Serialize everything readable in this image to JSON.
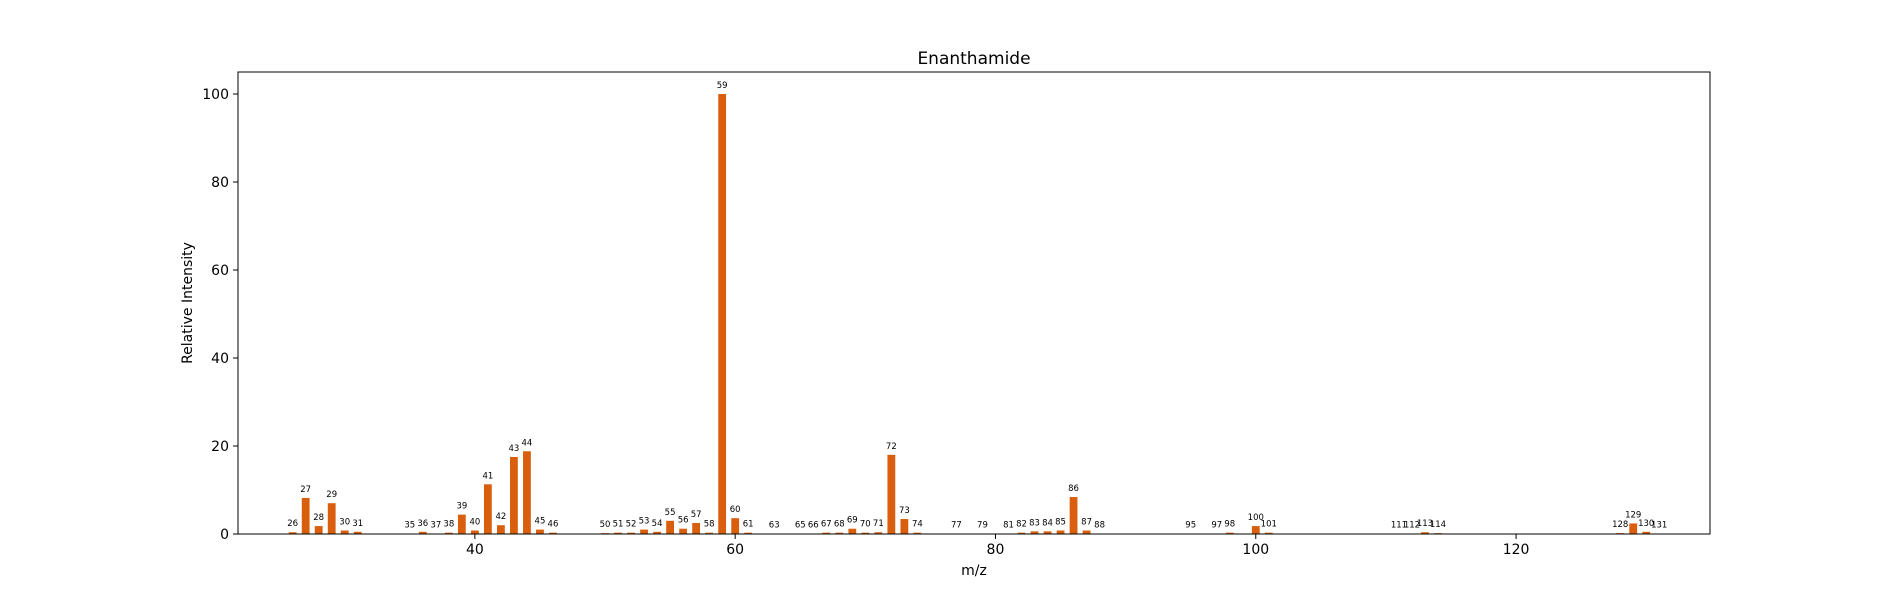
{
  "chart_data": {
    "type": "bar",
    "title": "Enanthamide",
    "xlabel": "m/z",
    "ylabel": "Relative Intensity",
    "xlim": [
      21.8,
      134.9
    ],
    "ylim": [
      0,
      105
    ],
    "xticks": [
      40,
      60,
      80,
      100,
      120
    ],
    "yticks": [
      0,
      20,
      40,
      60,
      80,
      100
    ],
    "grid": false,
    "legend": "none",
    "bar_color": "#d95f0e",
    "series": [
      {
        "x": [
          26,
          27,
          28,
          29,
          30,
          31,
          35,
          36,
          37,
          38,
          39,
          40,
          41,
          42,
          43,
          44,
          45,
          46,
          50,
          51,
          52,
          53,
          54,
          55,
          56,
          57,
          58,
          59,
          60,
          61,
          63,
          65,
          66,
          67,
          68,
          69,
          70,
          71,
          72,
          73,
          74,
          77,
          79,
          81,
          82,
          83,
          84,
          85,
          86,
          87,
          88,
          95,
          97,
          98,
          100,
          101,
          111,
          112,
          113,
          114,
          128,
          129,
          130,
          131
        ],
        "values": [
          0.4,
          8.2,
          1.8,
          7.0,
          0.8,
          0.5,
          0.1,
          0.5,
          0.1,
          0.3,
          4.4,
          0.8,
          11.3,
          2.0,
          17.5,
          18.8,
          1.0,
          0.3,
          0.2,
          0.3,
          0.3,
          1.0,
          0.5,
          3.0,
          1.2,
          2.5,
          0.3,
          100,
          3.6,
          0.3,
          0.1,
          0.1,
          0.1,
          0.3,
          0.3,
          1.2,
          0.3,
          0.4,
          18.0,
          3.4,
          0.3,
          0.1,
          0.1,
          0.1,
          0.3,
          0.6,
          0.6,
          0.8,
          8.4,
          0.8,
          0.1,
          0.1,
          0.1,
          0.3,
          1.8,
          0.3,
          0.1,
          0.1,
          0.4,
          0.2,
          0.2,
          2.4,
          0.5,
          0.1
        ]
      }
    ]
  }
}
